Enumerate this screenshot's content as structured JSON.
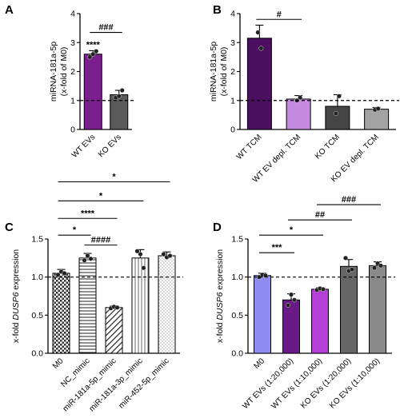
{
  "chart_data": [
    {
      "panel": "A",
      "type": "bar",
      "ylabel": [
        "miRNA-181a-5p",
        "(x-fold of M0)"
      ],
      "ylim": [
        0,
        4
      ],
      "yticks": [
        "0",
        "1",
        "2",
        "3",
        "4"
      ],
      "reference_line": 1,
      "categories": [
        "WT EVs",
        "KO EVs"
      ],
      "values": [
        2.6,
        1.2
      ],
      "errors": [
        0.12,
        0.15
      ],
      "points": [
        [
          2.5,
          2.6,
          2.7
        ],
        [
          1.1,
          1.15,
          1.35
        ]
      ],
      "colors": [
        "#7b1e8e",
        "#5a5a5a"
      ],
      "hatch": [
        "none",
        "none"
      ],
      "annotations": [
        {
          "text": "****",
          "bar": 0
        },
        {
          "text": "###",
          "from": 0,
          "to": 1,
          "y": 3.35
        }
      ]
    },
    {
      "panel": "B",
      "type": "bar",
      "ylabel": [
        "miRNA-181a-5p",
        "(x-fold of M0)"
      ],
      "ylim": [
        0,
        4
      ],
      "yticks": [
        "0",
        "1",
        "2",
        "3",
        "4"
      ],
      "reference_line": 1,
      "categories": [
        "WT TCM",
        "WT EV depl. TCM",
        "KO TCM",
        "KO EV depl. TCM"
      ],
      "values": [
        3.15,
        1.05,
        0.8,
        0.7
      ],
      "errors": [
        0.45,
        0.12,
        0.4,
        0.06
      ],
      "points": [
        [
          3.35,
          2.8
        ],
        [
          1.0,
          1.1
        ],
        [
          0.55,
          1.15
        ],
        [
          0.68,
          0.72
        ]
      ],
      "colors": [
        "#4a0f5e",
        "#c58be0",
        "#454545",
        "#a3a3a3"
      ],
      "hatch": [
        "none",
        "none",
        "none",
        "none"
      ],
      "annotations": [
        {
          "text": "#",
          "from": 0,
          "to": 1,
          "y": 3.8
        }
      ]
    },
    {
      "panel": "C",
      "type": "bar",
      "ylabel": [
        "x-fold DUSP6 expression"
      ],
      "ylim": [
        0,
        1.5
      ],
      "yticks": [
        "0.0",
        "0.5",
        "1.0",
        "1.5"
      ],
      "reference_line": 1,
      "categories": [
        "M0",
        "NC_mimic",
        "miR-181a-5p_mimic",
        "miR-181a-3p_mimic",
        "miR-452-5p_mimic"
      ],
      "values": [
        1.05,
        1.25,
        0.6,
        1.25,
        1.28
      ],
      "errors": [
        0.05,
        0.06,
        0.02,
        0.11,
        0.05
      ],
      "points": [
        [
          1.03,
          1.07,
          1.05
        ],
        [
          1.22,
          1.28,
          1.24
        ],
        [
          0.59,
          0.61,
          0.6
        ],
        [
          1.34,
          1.3,
          1.12
        ],
        [
          1.3,
          1.26,
          1.28
        ]
      ],
      "colors": [
        "#ffffff",
        "#ffffff",
        "#ffffff",
        "#ffffff",
        "#ffffff"
      ],
      "hatch": [
        "checker",
        "horizontal",
        "diagonal",
        "vertical",
        "dots"
      ],
      "annotations": [
        {
          "text": "*",
          "from": 0,
          "to": 4,
          "y": 2.25
        },
        {
          "text": "*",
          "from": 0,
          "to": 3,
          "y": 2.0
        },
        {
          "text": "****",
          "from": 0,
          "to": 2,
          "y": 1.77
        },
        {
          "text": "*",
          "from": 0,
          "to": 1,
          "y": 1.55
        },
        {
          "text": "####",
          "from": 1,
          "to": 2,
          "y": 1.42
        }
      ]
    },
    {
      "panel": "D",
      "type": "bar",
      "ylabel": [
        "x-fold DUSP6 expression"
      ],
      "ylim": [
        0,
        1.5
      ],
      "yticks": [
        "0.0",
        "0.5",
        "1.0",
        "1.5"
      ],
      "reference_line": 1,
      "categories": [
        "M0",
        "WT EVs (1:20,000)",
        "WT EVs (1:10,000)",
        "KO EVs (1:20,000)",
        "KO EVs (1:10,000)"
      ],
      "values": [
        1.02,
        0.7,
        0.84,
        1.14,
        1.15
      ],
      "errors": [
        0.03,
        0.08,
        0.02,
        0.09,
        0.05
      ],
      "points": [
        [
          1.0,
          1.03,
          1.02
        ],
        [
          0.63,
          0.77,
          0.7
        ],
        [
          0.83,
          0.85,
          0.84
        ],
        [
          1.25,
          1.08,
          1.1
        ],
        [
          1.12,
          1.18,
          1.15
        ]
      ],
      "colors": [
        "#8f8cf0",
        "#6a1a86",
        "#b43fd6",
        "#666666",
        "#8a8a8a"
      ],
      "hatch": [
        "none",
        "none",
        "none",
        "none",
        "none"
      ],
      "annotations": [
        {
          "text": "###",
          "from": 2,
          "to": 4,
          "y": 1.95
        },
        {
          "text": "##",
          "from": 1,
          "to": 3,
          "y": 1.75
        },
        {
          "text": "*",
          "from": 0,
          "to": 2,
          "y": 1.55
        },
        {
          "text": "***",
          "from": 0,
          "to": 1,
          "y": 1.32
        }
      ]
    }
  ]
}
